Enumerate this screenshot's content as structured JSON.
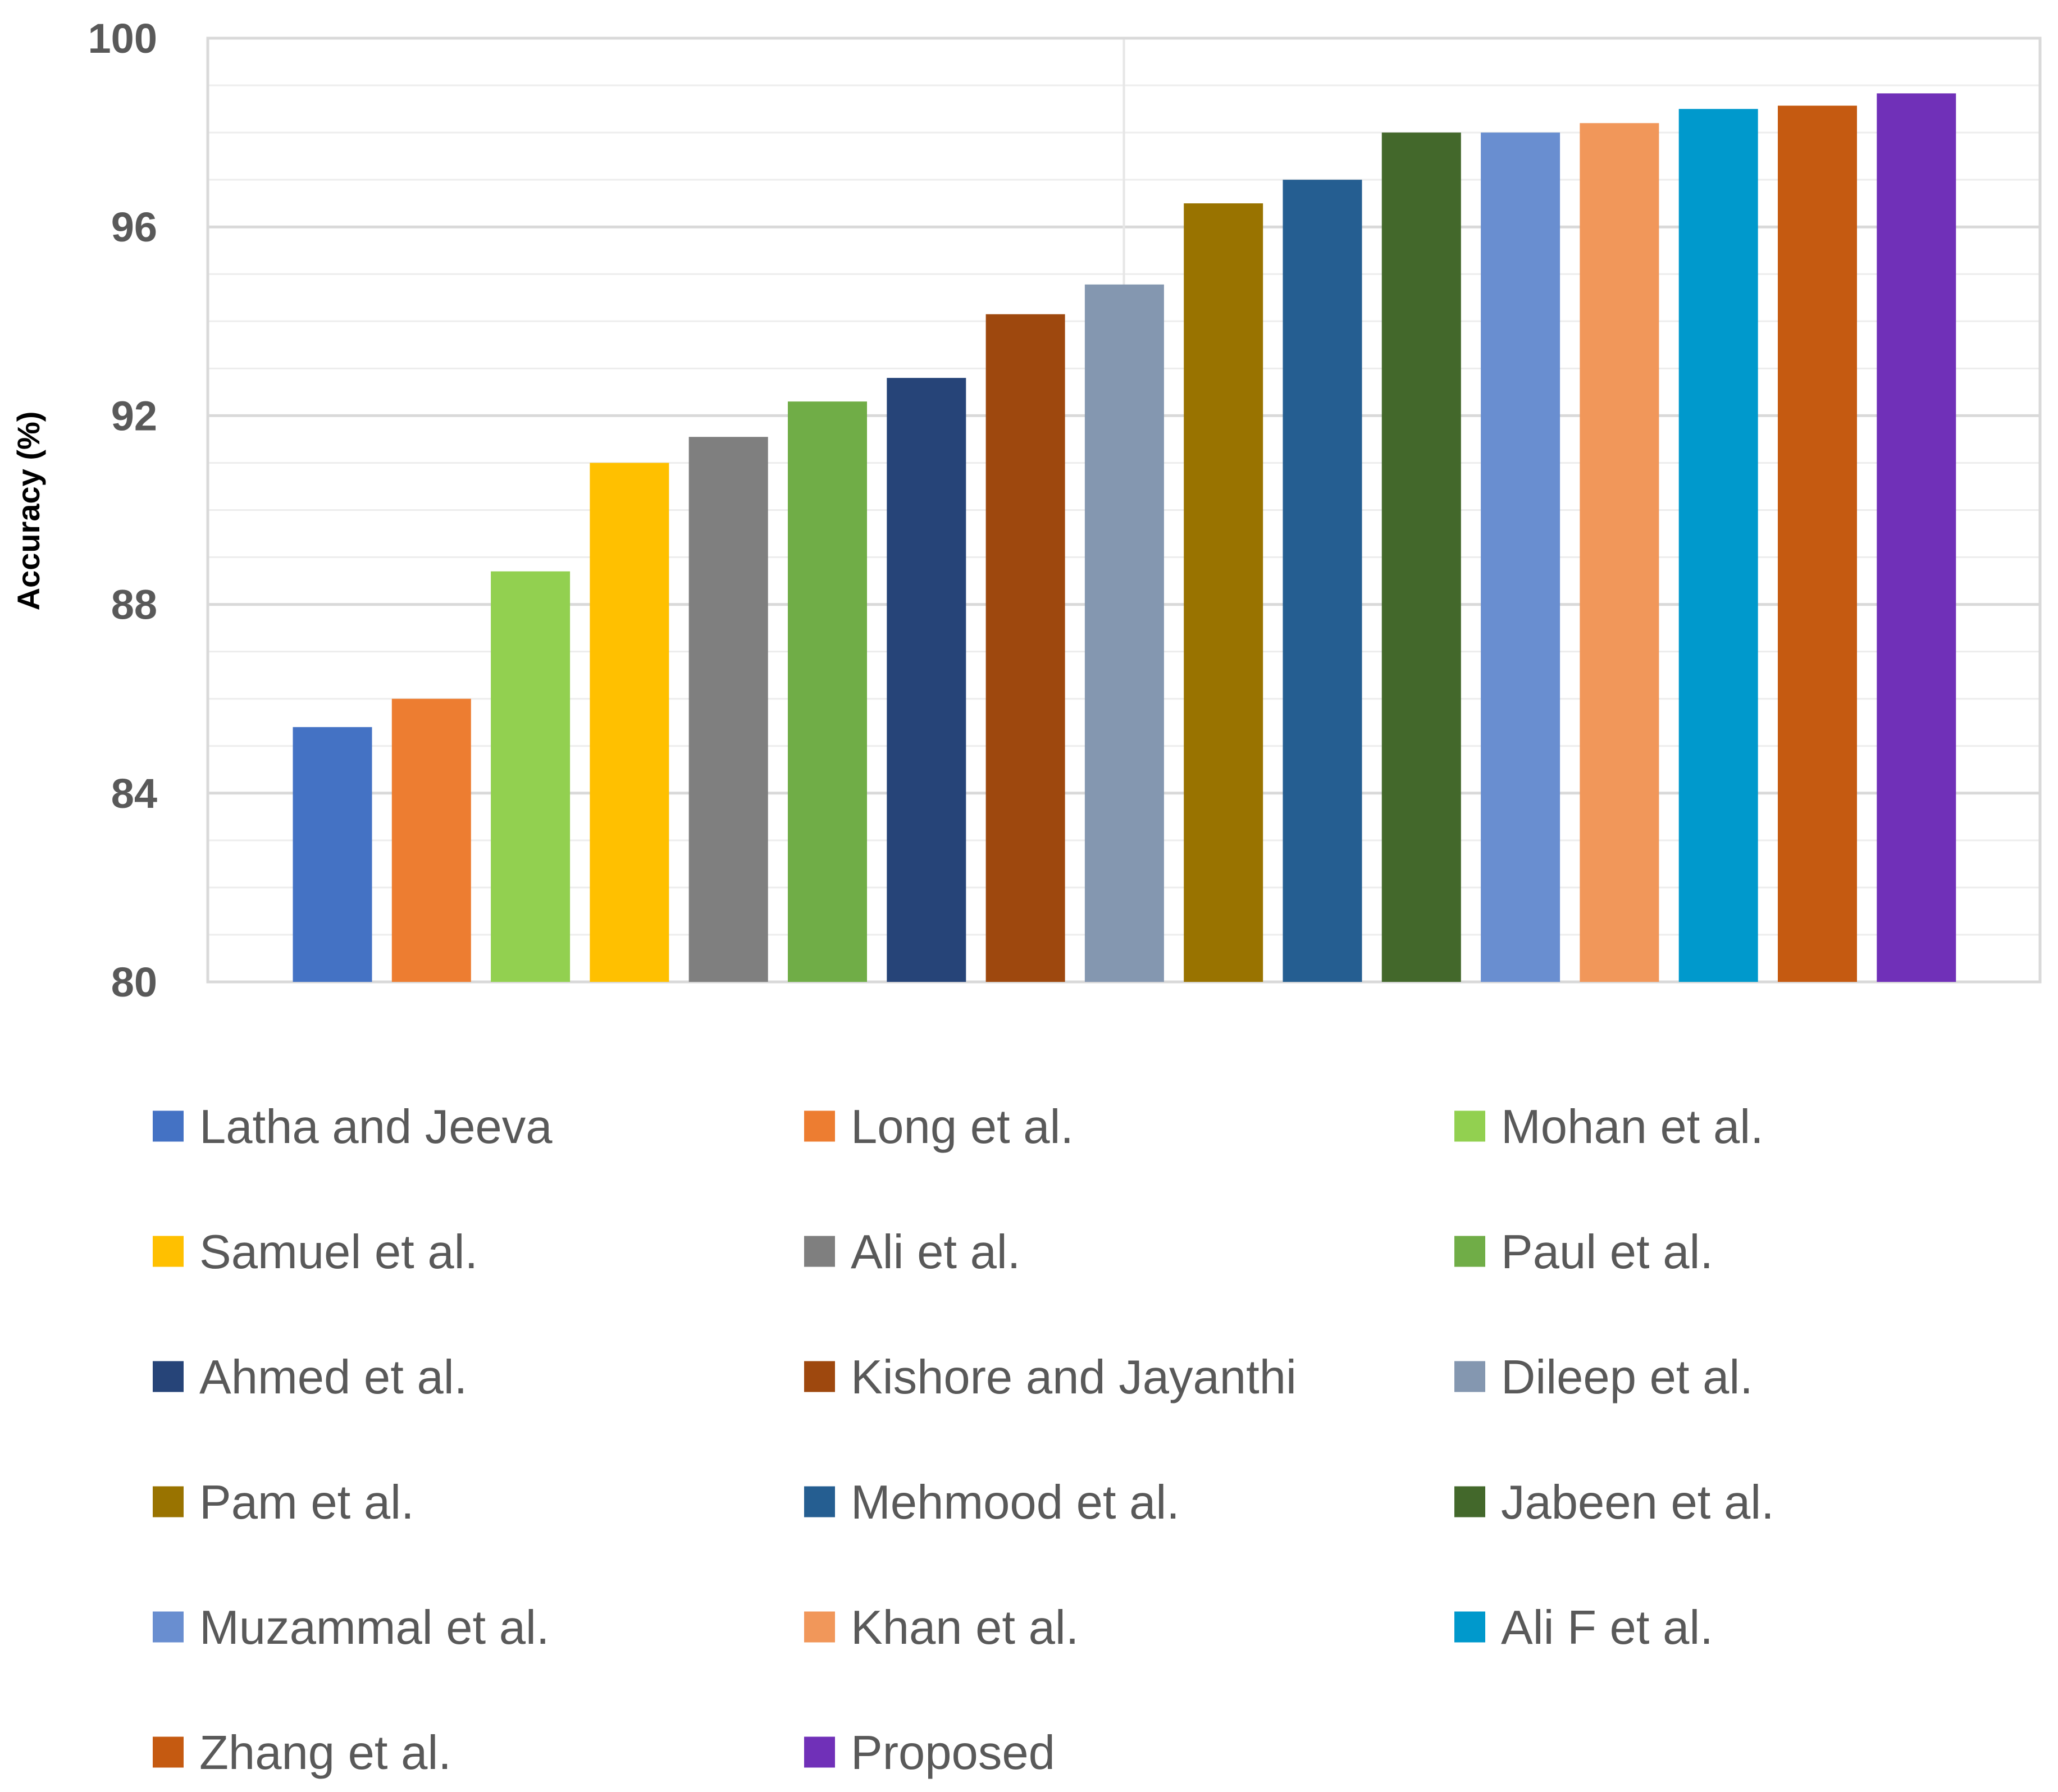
{
  "chart_data": {
    "type": "bar",
    "title": "",
    "xlabel": "",
    "ylabel": "Accuracy (%)",
    "ylim": [
      80,
      100
    ],
    "yticks": [
      80,
      84,
      88,
      92,
      96,
      100
    ],
    "grid": true,
    "legend_position": "bottom",
    "series": [
      {
        "name": "Latha and Jeeva",
        "value": 85.4,
        "color": "#4472C4"
      },
      {
        "name": "Long et al.",
        "value": 86.0,
        "color": "#ED7D31"
      },
      {
        "name": "Mohan et al.",
        "value": 88.7,
        "color": "#92D050"
      },
      {
        "name": "Samuel et al.",
        "value": 91.0,
        "color": "#FFC000"
      },
      {
        "name": "Ali et al.",
        "value": 91.55,
        "color": "#7F7F7F"
      },
      {
        "name": "Paul et al.",
        "value": 92.3,
        "color": "#70AD47"
      },
      {
        "name": "Ahmed et al.",
        "value": 92.8,
        "color": "#264478"
      },
      {
        "name": "Kishore and Jayanthi",
        "value": 94.15,
        "color": "#9E480E"
      },
      {
        "name": "Dileep et al.",
        "value": 94.78,
        "color": "#8497B0"
      },
      {
        "name": "Pam et al.",
        "value": 96.5,
        "color": "#997300"
      },
      {
        "name": "Mehmood et al.",
        "value": 97.0,
        "color": "#255E91"
      },
      {
        "name": "Jabeen et al.",
        "value": 98.0,
        "color": "#43682B"
      },
      {
        "name": "Muzammal et al.",
        "value": 98.0,
        "color": "#698ED0"
      },
      {
        "name": "Khan et al.",
        "value": 98.2,
        "color": "#F1975A"
      },
      {
        "name": "Ali F et al.",
        "value": 98.5,
        "color": "#0099CC"
      },
      {
        "name": "Zhang et al.",
        "value": 98.57,
        "color": "#C55A11"
      },
      {
        "name": "Proposed",
        "value": 98.83,
        "color": "#7030B8"
      }
    ]
  }
}
